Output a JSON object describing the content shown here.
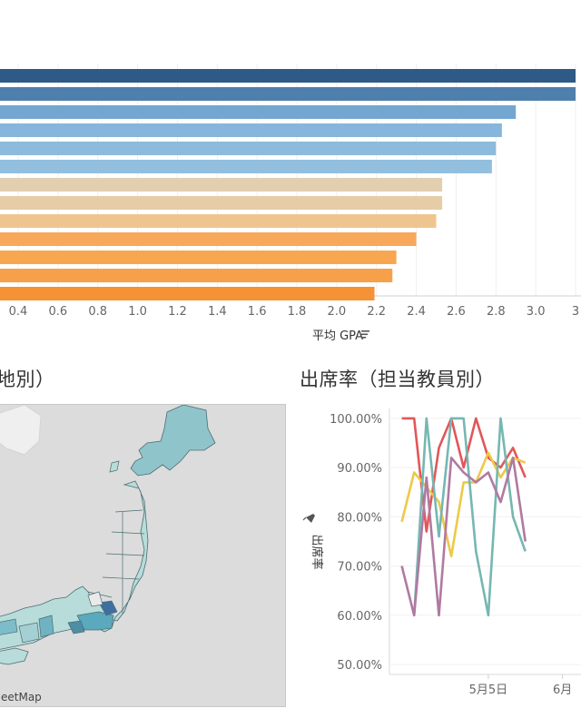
{
  "chart_data": [
    {
      "type": "bar",
      "orientation": "horizontal",
      "xlabel": "平均 GPA",
      "x_ticks": [
        "0.4",
        "0.6",
        "0.8",
        "1.0",
        "1.2",
        "1.4",
        "1.6",
        "1.8",
        "2.0",
        "2.2",
        "2.4",
        "2.6",
        "2.8",
        "3.0",
        "3"
      ],
      "xlim": [
        0.3,
        3.2
      ],
      "values": [
        3.2,
        3.2,
        2.9,
        2.83,
        2.8,
        2.78,
        2.53,
        2.53,
        2.5,
        2.4,
        2.3,
        2.28,
        2.19
      ],
      "colors": [
        "#2f5a87",
        "#4f7fad",
        "#73a7d2",
        "#86b6dc",
        "#8cbbde",
        "#93bfdf",
        "#e2cfb0",
        "#e6cda8",
        "#efc58f",
        "#f8a85a",
        "#f9a651",
        "#f7a04a",
        "#f59236"
      ]
    },
    {
      "type": "map",
      "title": "地別）",
      "credit": "eetMap"
    },
    {
      "type": "line",
      "title": "出席率（担当教員別）",
      "ylabel": "出席率",
      "ylim": [
        48,
        102
      ],
      "y_ticks": [
        "100.00%",
        "90.00%",
        "80.00%",
        "70.00%",
        "60.00%",
        "50.00%"
      ],
      "y_tick_values": [
        100,
        90,
        80,
        70,
        60,
        50
      ],
      "x_ticks": [
        "5月5日",
        "6月"
      ],
      "x_tick_positions": [
        7,
        13
      ],
      "x_range": [
        -1,
        14.5
      ],
      "series": [
        {
          "color": "#e15759",
          "values": [
            100,
            100,
            77,
            94,
            100,
            90,
            100,
            92,
            90,
            94,
            88
          ]
        },
        {
          "color": "#edc948",
          "values": [
            79,
            89,
            86,
            83,
            72,
            87,
            87,
            93,
            88,
            92,
            91
          ]
        },
        {
          "color": "#76b7b2",
          "values": [
            null,
            60,
            100,
            76,
            100,
            100,
            73,
            60,
            100,
            80,
            73
          ]
        },
        {
          "color": "#b07aa1",
          "values": [
            70,
            60,
            88,
            60,
            92,
            89,
            87,
            89,
            83,
            92,
            75
          ]
        }
      ]
    }
  ]
}
